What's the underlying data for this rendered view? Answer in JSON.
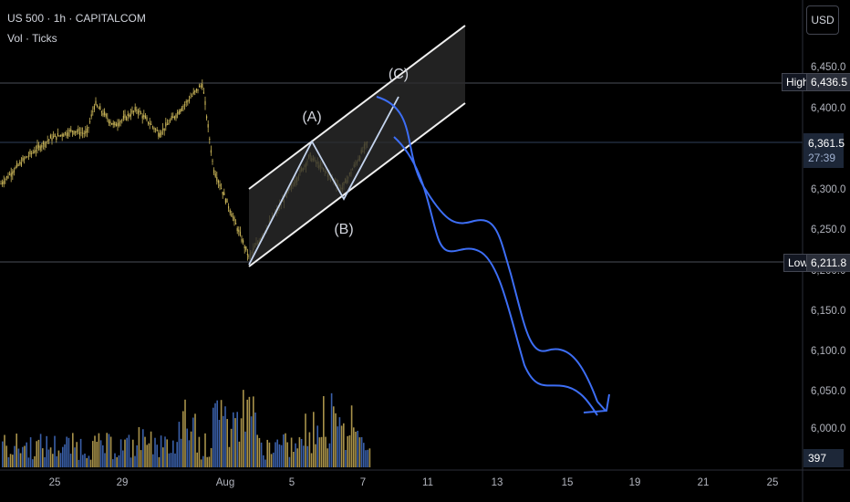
{
  "header": {
    "symbol_line": "US 500 · 1h · CAPITALCOM",
    "indicator_line": "Vol · Ticks"
  },
  "currency_button": "USD",
  "price_axis": {
    "ticks": [
      "6,450.0",
      "6,400.0",
      "6,300.0",
      "6,250.0",
      "6,200.0",
      "6,150.0",
      "6,100.0",
      "6,050.0",
      "6,000.0"
    ],
    "high": {
      "label": "High",
      "value": "6,436.5"
    },
    "low": {
      "label": "Low",
      "value": "6,211.8"
    },
    "current": {
      "price": "6,361.5",
      "countdown": "27:39"
    },
    "volume_value": "397"
  },
  "time_axis": {
    "ticks": [
      "25",
      "29",
      "Aug",
      "5",
      "7",
      "11",
      "13",
      "15",
      "19",
      "21",
      "25"
    ]
  },
  "wave_labels": {
    "a": "(A)",
    "b": "(B)",
    "c": "(C)"
  },
  "colors": {
    "background": "#000000",
    "candle": "#c9b458",
    "volume_blue": "#3a5fa8",
    "volume_gold": "#a8924a",
    "projection": "#3d6ef5",
    "wave_line": "#c4d4ee",
    "channel_fill": "#2c2c2c",
    "price_tag_bg": "#1d2738"
  },
  "chart_data": {
    "type": "line",
    "symbol": "US 500",
    "interval": "1h",
    "yaxis_range": [
      5975,
      6475
    ],
    "price_path": [
      [
        "Jul 22",
        6305
      ],
      [
        "Jul 23",
        6338
      ],
      [
        "Jul 24",
        6362
      ],
      [
        "Jul 25",
        6372
      ],
      [
        "Jul 26",
        6368
      ],
      [
        "Jul 28",
        6405
      ],
      [
        "Jul 29",
        6378
      ],
      [
        "Jul 30",
        6398
      ],
      [
        "Jul 31",
        6368
      ],
      [
        "Aug 1",
        6430
      ],
      [
        "Aug 1",
        6325
      ],
      [
        "Aug 4",
        6215
      ],
      [
        "Aug 5",
        6340
      ],
      [
        "Aug 6",
        6300
      ],
      [
        "Aug 7",
        6361.5
      ]
    ],
    "elliott_wave": {
      "A": 6362,
      "B": 6290,
      "C": 6425
    },
    "channel": {
      "upper_start": 6305,
      "upper_end": 6455,
      "lower_start": 6213,
      "lower_end": 6405
    },
    "projected_target": 6020
  }
}
